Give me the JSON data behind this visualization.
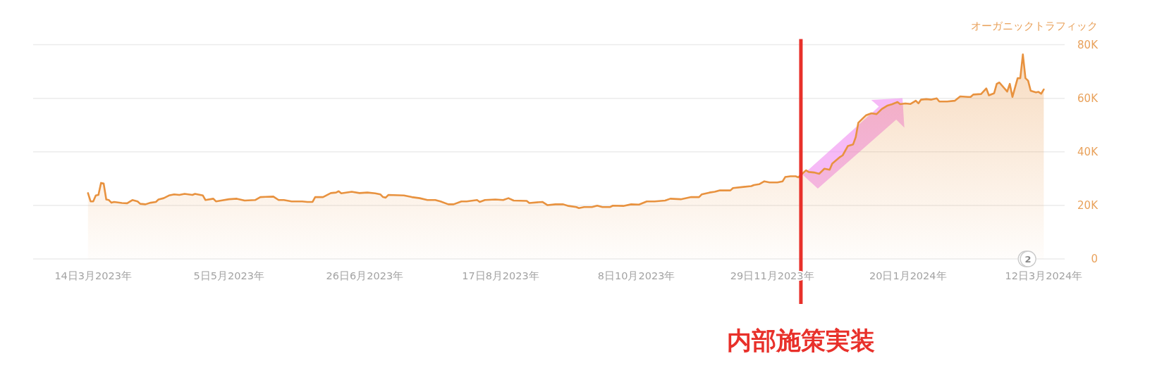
{
  "chart_data": {
    "type": "area",
    "color": "#e8923f",
    "ylabel": "オーガニックトラフィック",
    "x": [
      "2023-03-12",
      "2023-03-13",
      "2023-03-14",
      "2023-03-15",
      "2023-03-16",
      "2023-03-17",
      "2023-03-18",
      "2023-03-19",
      "2023-03-20",
      "2023-03-21",
      "2023-03-22",
      "2023-03-25",
      "2023-03-27",
      "2023-03-29",
      "2023-03-31",
      "2023-04-01",
      "2023-04-03",
      "2023-04-05",
      "2023-04-07",
      "2023-04-08",
      "2023-04-10",
      "2023-04-12",
      "2023-04-14",
      "2023-04-16",
      "2023-04-18",
      "2023-04-21",
      "2023-04-22",
      "2023-04-25",
      "2023-04-26",
      "2023-04-29",
      "2023-04-30",
      "2023-05-02",
      "2023-05-05",
      "2023-05-08",
      "2023-05-11",
      "2023-05-15",
      "2023-05-17",
      "2023-05-19",
      "2023-05-22",
      "2023-05-24",
      "2023-05-26",
      "2023-05-29",
      "2023-06-02",
      "2023-06-04",
      "2023-06-06",
      "2023-06-07",
      "2023-06-10",
      "2023-06-13",
      "2023-06-15",
      "2023-06-16",
      "2023-06-17",
      "2023-06-21",
      "2023-06-24",
      "2023-06-27",
      "2023-06-30",
      "2023-07-02",
      "2023-07-03",
      "2023-07-04",
      "2023-07-05",
      "2023-07-11",
      "2023-07-14",
      "2023-07-17",
      "2023-07-20",
      "2023-07-23",
      "2023-07-25",
      "2023-07-28",
      "2023-07-30",
      "2023-08-02",
      "2023-08-04",
      "2023-08-08",
      "2023-08-09",
      "2023-08-11",
      "2023-08-15",
      "2023-08-18",
      "2023-08-20",
      "2023-08-22",
      "2023-08-27",
      "2023-08-28",
      "2023-09-02",
      "2023-09-04",
      "2023-09-07",
      "2023-09-10",
      "2023-09-12",
      "2023-09-15",
      "2023-09-16",
      "2023-09-18",
      "2023-09-21",
      "2023-09-23",
      "2023-09-25",
      "2023-09-28",
      "2023-09-29",
      "2023-10-03",
      "2023-10-06",
      "2023-10-09",
      "2023-10-12",
      "2023-10-15",
      "2023-10-19",
      "2023-10-21",
      "2023-10-25",
      "2023-10-29",
      "2023-11-01",
      "2023-11-02",
      "2023-11-05",
      "2023-11-07",
      "2023-11-09",
      "2023-11-13",
      "2023-11-14",
      "2023-11-18",
      "2023-11-21",
      "2023-11-22",
      "2023-11-24",
      "2023-11-26",
      "2023-11-28",
      "2023-12-01",
      "2023-12-03",
      "2023-12-04",
      "2023-12-06",
      "2023-12-08",
      "2023-12-09",
      "2023-12-12",
      "2023-12-13",
      "2023-12-15",
      "2023-12-17",
      "2023-12-19",
      "2023-12-21",
      "2023-12-22",
      "2023-12-25",
      "2023-12-26",
      "2023-12-28",
      "2023-12-30",
      "2023-12-31",
      "2024-01-01",
      "2024-01-03",
      "2024-01-04",
      "2024-01-06",
      "2024-01-08",
      "2024-01-10",
      "2024-01-12",
      "2024-01-14",
      "2024-01-16",
      "2024-01-17",
      "2024-01-19",
      "2024-01-21",
      "2024-01-23",
      "2024-01-24",
      "2024-01-25",
      "2024-01-27",
      "2024-01-29",
      "2024-01-31",
      "2024-02-01",
      "2024-02-04",
      "2024-02-07",
      "2024-02-09",
      "2024-02-12",
      "2024-02-13",
      "2024-02-14",
      "2024-02-17",
      "2024-02-19",
      "2024-02-20",
      "2024-02-22",
      "2024-02-23",
      "2024-02-24",
      "2024-02-27",
      "2024-02-28",
      "2024-02-29",
      "2024-03-02",
      "2024-03-03",
      "2024-03-04",
      "2024-03-05",
      "2024-03-06",
      "2024-03-07",
      "2024-03-09",
      "2024-03-10",
      "2024-03-11",
      "2024-03-12"
    ],
    "values": [
      24600,
      21500,
      21500,
      23700,
      23900,
      28400,
      28200,
      22200,
      22000,
      21000,
      21300,
      20900,
      20800,
      22000,
      21500,
      20600,
      20400,
      21000,
      21300,
      22200,
      22700,
      23700,
      24100,
      23900,
      24300,
      23900,
      24300,
      23700,
      22000,
      22500,
      21500,
      21800,
      22300,
      22500,
      21800,
      22000,
      23100,
      23200,
      23300,
      22000,
      22000,
      21500,
      21500,
      21300,
      21300,
      23100,
      23100,
      24600,
      24800,
      25300,
      24500,
      25100,
      24600,
      24800,
      24500,
      24100,
      23100,
      22900,
      23900,
      23700,
      23100,
      22700,
      22000,
      22000,
      21500,
      20400,
      20400,
      21500,
      21500,
      22000,
      21300,
      22000,
      22200,
      22000,
      22700,
      21800,
      21700,
      20900,
      21300,
      20100,
      20400,
      20400,
      19800,
      19400,
      19000,
      19400,
      19400,
      19900,
      19400,
      19400,
      19900,
      19800,
      20400,
      20300,
      21500,
      21500,
      21800,
      22500,
      22300,
      23100,
      23100,
      24100,
      24800,
      25100,
      25600,
      25600,
      26500,
      26900,
      27200,
      27600,
      27900,
      29000,
      28600,
      28600,
      29000,
      30600,
      30900,
      30900,
      30500,
      33100,
      32500,
      32300,
      31800,
      33700,
      33300,
      35600,
      38100,
      38700,
      42200,
      42800,
      45500,
      50900,
      52800,
      53700,
      54400,
      54100,
      56000,
      57200,
      57800,
      58600,
      57800,
      58100,
      57900,
      59100,
      58100,
      59500,
      59700,
      59500,
      60000,
      58800,
      58800,
      59100,
      60700,
      60500,
      60500,
      61400,
      61600,
      63700,
      61100,
      61900,
      65400,
      65900,
      62500,
      65400,
      60500,
      67500,
      67500,
      76400,
      67500,
      66600,
      62800,
      62200,
      62400,
      61700,
      63300
    ],
    "xlim": [
      "2023-02-19",
      "2024-03-20"
    ],
    "xticks": [
      {
        "value": "2023-03-14",
        "label": "14日3月2023年"
      },
      {
        "value": "2023-05-05",
        "label": "5日5月2023年"
      },
      {
        "value": "2023-06-26",
        "label": "26日6月2023年"
      },
      {
        "value": "2023-08-17",
        "label": "17日8月2023年"
      },
      {
        "value": "2023-10-08",
        "label": "8日10月2023年"
      },
      {
        "value": "2023-11-29",
        "label": "29日11月2023年"
      },
      {
        "value": "2024-01-20",
        "label": "20日1月2024年"
      },
      {
        "value": "2024-03-12",
        "label": "12日3月2024年"
      }
    ],
    "ylim": [
      0,
      80000
    ],
    "yticks": [
      0,
      {
        "value": 20000,
        "label": "20K"
      },
      {
        "value": 40000,
        "label": "40K"
      },
      {
        "value": 60000,
        "label": "60K"
      },
      {
        "value": 80000,
        "label": "80K"
      }
    ],
    "grid": "y",
    "ref_lines": [
      {
        "axis": "x",
        "value": "2023-12-10",
        "label": "内部施策実装",
        "color": "#e8302a"
      }
    ],
    "annotations": [
      {
        "text": "2",
        "x": "2024-03-06",
        "y": 0
      }
    ]
  }
}
